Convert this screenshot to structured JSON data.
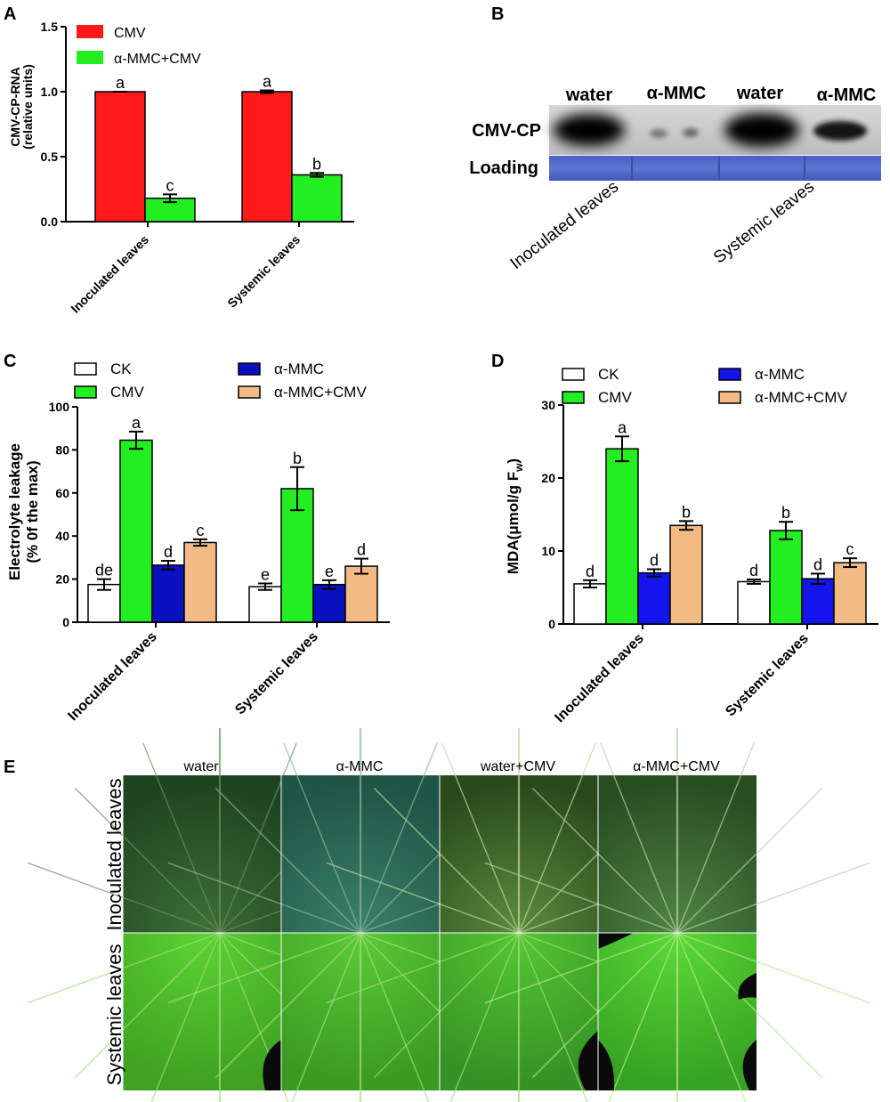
{
  "panels": {
    "A": "A",
    "B": "B",
    "C": "C",
    "D": "D",
    "E": "E"
  },
  "colors": {
    "ck": "#ffffff",
    "cmv_red": "#ff1a1a",
    "cmv_green": "#22ee22",
    "ammc_blue": "#0a10c0",
    "ammc_blue2": "#1414ee",
    "ammc_cmv": "#f2bb85"
  },
  "chart_data": [
    {
      "id": "A",
      "type": "bar",
      "ylabel": [
        "CMV-CP-RNA",
        "(relative units)"
      ],
      "ylim": [
        0,
        1.5
      ],
      "yticks": [
        "0.0",
        "0.5",
        "1.0",
        "1.5"
      ],
      "categories": [
        "Inoculated  leaves",
        "Systemic  leaves"
      ],
      "series": [
        {
          "name": "CMV",
          "color": "#ff1a1a",
          "values": [
            1.0,
            1.0
          ],
          "errors": [
            0,
            0.01
          ],
          "letters": [
            "a",
            "a"
          ]
        },
        {
          "name": "α-MMC+CMV",
          "color": "#22ee22",
          "values": [
            0.18,
            0.36
          ],
          "errors": [
            0.03,
            0.015
          ],
          "letters": [
            "c",
            "b"
          ]
        }
      ]
    },
    {
      "id": "C",
      "type": "bar",
      "ylabel": [
        "Electrolyte leakage",
        "(%  0f  the max)"
      ],
      "ylim": [
        0,
        100
      ],
      "yticks": [
        "0",
        "20",
        "40",
        "60",
        "80",
        "100"
      ],
      "categories": [
        "Inoculated leaves",
        "Systemic leaves"
      ],
      "series": [
        {
          "name": "CK",
          "color": "#ffffff",
          "values": [
            17.5,
            16.5
          ],
          "errors": [
            2.5,
            1.5
          ],
          "letters": [
            "de",
            "e"
          ]
        },
        {
          "name": "CMV",
          "color": "#22ee22",
          "values": [
            84.5,
            62
          ],
          "errors": [
            4,
            10
          ],
          "letters": [
            "a",
            "b"
          ]
        },
        {
          "name": "α-MMC",
          "color": "#0a10c0",
          "values": [
            26.5,
            17.5
          ],
          "errors": [
            2,
            2
          ],
          "letters": [
            "d",
            "e"
          ]
        },
        {
          "name": "α-MMC+CMV",
          "color": "#f2bb85",
          "values": [
            37,
            26
          ],
          "errors": [
            1.5,
            3.5
          ],
          "letters": [
            "c",
            "d"
          ]
        }
      ]
    },
    {
      "id": "D",
      "type": "bar",
      "ylabel": [
        "MDA(μmol/g F",
        "w",
        ")"
      ],
      "ylim": [
        0,
        30
      ],
      "yticks": [
        "0",
        "10",
        "20",
        "30"
      ],
      "categories": [
        "Inoculated leaves",
        "Systemic leaves"
      ],
      "series": [
        {
          "name": "CK",
          "color": "#ffffff",
          "values": [
            5.5,
            5.8
          ],
          "errors": [
            0.5,
            0.3
          ],
          "letters": [
            "d",
            "d"
          ]
        },
        {
          "name": "CMV",
          "color": "#22ee22",
          "values": [
            24,
            12.8
          ],
          "errors": [
            1.7,
            1.2
          ],
          "letters": [
            "a",
            "b"
          ]
        },
        {
          "name": "α-MMC",
          "color": "#1414ee",
          "values": [
            7,
            6.2
          ],
          "errors": [
            0.5,
            0.7
          ],
          "letters": [
            "d",
            "d"
          ]
        },
        {
          "name": "α-MMC+CMV",
          "color": "#f2bb85",
          "values": [
            13.5,
            8.4
          ],
          "errors": [
            0.6,
            0.6
          ],
          "letters": [
            "b",
            "c"
          ]
        }
      ]
    }
  ],
  "blot": {
    "lanes": [
      "water",
      "α-MMC",
      "water",
      "α-MMC"
    ],
    "rows": [
      "CMV-CP",
      "Loading"
    ],
    "groups": [
      "Inoculated leaves",
      "Systemic leaves"
    ]
  },
  "photos": {
    "columns": [
      "water",
      "α-MMC",
      "water+CMV",
      "α-MMC+CMV"
    ],
    "rows": [
      "Inoculated leaves",
      "Systemic leaves"
    ]
  }
}
